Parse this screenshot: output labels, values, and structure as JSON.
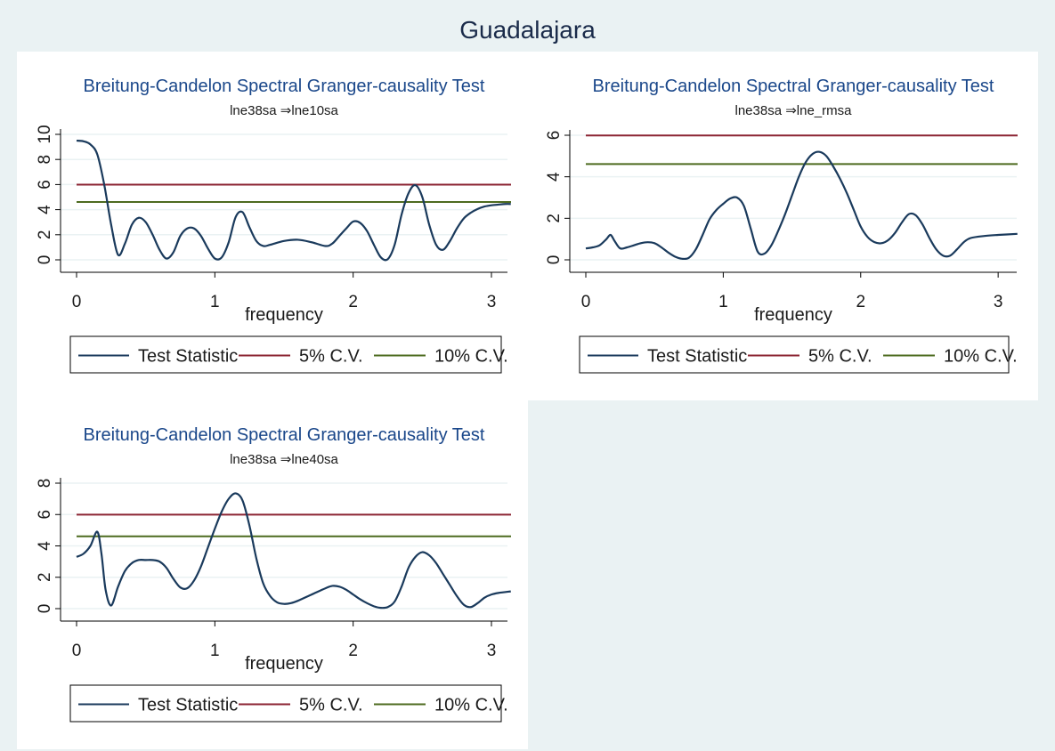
{
  "figure_title": "Guadalajara",
  "legend": {
    "entries": [
      "Test Statistic",
      "5% C.V.",
      "10% C.V."
    ]
  },
  "colors": {
    "test_statistic": "#1a3a5c",
    "cv5": "#8b2332",
    "cv10": "#4d6b1f",
    "grid": "#eaf2f3"
  },
  "chart_data": [
    {
      "type": "line",
      "title": "Breitung-Candelon Spectral Granger-causality Test",
      "subtitle": "lne38sa ⇒lne10sa",
      "xlabel": "frequency",
      "ylabel": "",
      "xlim": [
        0,
        3.1416
      ],
      "ylim": [
        0,
        10
      ],
      "xticks": [
        0,
        1,
        2,
        3
      ],
      "yticks": [
        0,
        2,
        4,
        6,
        8,
        10
      ],
      "cv5": 5.99,
      "cv10": 4.61,
      "x": [
        0,
        0.05,
        0.1,
        0.15,
        0.2,
        0.25,
        0.3,
        0.35,
        0.4,
        0.45,
        0.5,
        0.55,
        0.6,
        0.65,
        0.7,
        0.75,
        0.8,
        0.85,
        0.9,
        0.95,
        1.0,
        1.05,
        1.1,
        1.15,
        1.2,
        1.25,
        1.3,
        1.35,
        1.4,
        1.5,
        1.6,
        1.7,
        1.8,
        1.85,
        1.9,
        1.95,
        2.0,
        2.05,
        2.1,
        2.15,
        2.2,
        2.25,
        2.3,
        2.35,
        2.4,
        2.45,
        2.5,
        2.55,
        2.6,
        2.65,
        2.7,
        2.75,
        2.8,
        2.85,
        2.9,
        2.95,
        3.0,
        3.05,
        3.1,
        3.14
      ],
      "y": [
        9.5,
        9.45,
        9.2,
        8.4,
        6.0,
        2.8,
        0.4,
        1.3,
        2.8,
        3.35,
        3.0,
        2.0,
        0.8,
        0.1,
        0.6,
        1.9,
        2.5,
        2.5,
        1.9,
        0.9,
        0.1,
        0.2,
        1.4,
        3.4,
        3.8,
        2.6,
        1.5,
        1.1,
        1.2,
        1.5,
        1.6,
        1.4,
        1.1,
        1.3,
        1.9,
        2.5,
        3.05,
        2.95,
        2.3,
        1.2,
        0.2,
        0.05,
        1.2,
        3.6,
        5.3,
        5.95,
        5.0,
        2.8,
        1.2,
        0.8,
        1.5,
        2.5,
        3.3,
        3.75,
        4.05,
        4.25,
        4.35,
        4.4,
        4.45,
        4.45
      ]
    },
    {
      "type": "line",
      "title": "Breitung-Candelon Spectral Granger-causality Test",
      "subtitle": "lne38sa ⇒lne_rmsa",
      "xlabel": "frequency",
      "ylabel": "",
      "xlim": [
        0,
        3.1416
      ],
      "ylim": [
        0,
        6
      ],
      "xticks": [
        0,
        1,
        2,
        3
      ],
      "yticks": [
        0,
        2,
        4,
        6
      ],
      "cv5": 5.99,
      "cv10": 4.61,
      "x": [
        0,
        0.05,
        0.1,
        0.15,
        0.18,
        0.21,
        0.25,
        0.3,
        0.35,
        0.4,
        0.45,
        0.5,
        0.55,
        0.6,
        0.65,
        0.7,
        0.75,
        0.8,
        0.85,
        0.9,
        0.95,
        1.0,
        1.05,
        1.1,
        1.15,
        1.2,
        1.25,
        1.3,
        1.35,
        1.4,
        1.45,
        1.5,
        1.55,
        1.6,
        1.65,
        1.7,
        1.75,
        1.8,
        1.85,
        1.9,
        1.95,
        2.0,
        2.05,
        2.1,
        2.15,
        2.2,
        2.25,
        2.3,
        2.35,
        2.4,
        2.45,
        2.5,
        2.55,
        2.6,
        2.65,
        2.7,
        2.75,
        2.8,
        2.9,
        3.0,
        3.14
      ],
      "y": [
        0.55,
        0.6,
        0.7,
        1.0,
        1.2,
        0.9,
        0.55,
        0.6,
        0.7,
        0.8,
        0.85,
        0.8,
        0.6,
        0.35,
        0.15,
        0.05,
        0.1,
        0.5,
        1.2,
        1.95,
        2.4,
        2.7,
        2.95,
        3.0,
        2.6,
        1.5,
        0.4,
        0.3,
        0.7,
        1.4,
        2.2,
        3.1,
        4.0,
        4.7,
        5.1,
        5.2,
        5.0,
        4.5,
        3.9,
        3.2,
        2.4,
        1.6,
        1.1,
        0.85,
        0.8,
        0.95,
        1.3,
        1.8,
        2.2,
        2.15,
        1.7,
        1.05,
        0.5,
        0.2,
        0.2,
        0.5,
        0.85,
        1.05,
        1.15,
        1.2,
        1.25
      ]
    },
    {
      "type": "line",
      "title": "Breitung-Candelon Spectral Granger-causality Test",
      "subtitle": "lne38sa ⇒lne40sa",
      "xlabel": "frequency",
      "ylabel": "",
      "xlim": [
        0,
        3.1416
      ],
      "ylim": [
        0,
        8
      ],
      "xticks": [
        0,
        1,
        2,
        3
      ],
      "yticks": [
        0,
        2,
        4,
        6,
        8
      ],
      "cv5": 5.99,
      "cv10": 4.61,
      "x": [
        0,
        0.05,
        0.1,
        0.15,
        0.18,
        0.21,
        0.25,
        0.3,
        0.35,
        0.4,
        0.45,
        0.5,
        0.55,
        0.6,
        0.65,
        0.7,
        0.75,
        0.8,
        0.85,
        0.9,
        0.95,
        1.0,
        1.05,
        1.1,
        1.15,
        1.2,
        1.25,
        1.3,
        1.35,
        1.4,
        1.45,
        1.5,
        1.55,
        1.6,
        1.7,
        1.8,
        1.85,
        1.9,
        1.95,
        2.0,
        2.05,
        2.1,
        2.15,
        2.2,
        2.25,
        2.3,
        2.35,
        2.4,
        2.45,
        2.5,
        2.55,
        2.6,
        2.65,
        2.7,
        2.75,
        2.8,
        2.85,
        2.9,
        2.95,
        3.0,
        3.05,
        3.14
      ],
      "y": [
        3.3,
        3.5,
        4.0,
        4.9,
        3.5,
        1.2,
        0.2,
        1.4,
        2.4,
        2.9,
        3.1,
        3.1,
        3.1,
        3.0,
        2.6,
        1.9,
        1.35,
        1.3,
        1.8,
        2.7,
        3.9,
        5.1,
        6.2,
        7.0,
        7.35,
        6.9,
        5.3,
        3.2,
        1.6,
        0.8,
        0.4,
        0.3,
        0.35,
        0.5,
        0.9,
        1.3,
        1.45,
        1.4,
        1.2,
        0.9,
        0.6,
        0.35,
        0.15,
        0.05,
        0.1,
        0.45,
        1.4,
        2.6,
        3.3,
        3.6,
        3.4,
        2.9,
        2.2,
        1.5,
        0.8,
        0.25,
        0.1,
        0.35,
        0.7,
        0.9,
        1.0,
        1.1
      ]
    }
  ]
}
